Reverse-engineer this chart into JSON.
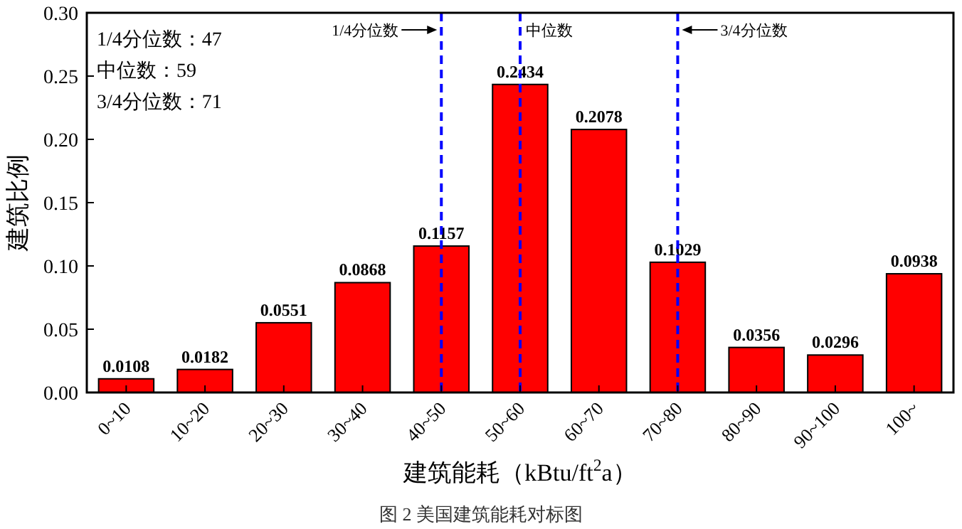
{
  "chart_data": {
    "type": "bar",
    "categories": [
      "0~10",
      "10~20",
      "20~30",
      "30~40",
      "40~50",
      "50~60",
      "60~70",
      "70~80",
      "80~90",
      "90~100",
      "100~"
    ],
    "values": [
      0.0108,
      0.0182,
      0.0551,
      0.0868,
      0.1157,
      0.2434,
      0.2078,
      0.1029,
      0.0356,
      0.0296,
      0.0938
    ],
    "color": "#ff0000",
    "data_labels": true,
    "xlabel": "建筑能耗（kBtu/ft$^{2}$a）",
    "ylabel": "建筑比例",
    "ylim": [
      0,
      0.3
    ],
    "yticks": [
      {
        "value": 0,
        "label": "0.00"
      },
      {
        "value": 0.05,
        "label": "0.05"
      },
      {
        "value": 0.1,
        "label": "0.10"
      },
      {
        "value": 0.15,
        "label": "0.15"
      },
      {
        "value": 0.2,
        "label": "0.20"
      },
      {
        "value": 0.25,
        "label": "0.25"
      },
      {
        "value": 0.3,
        "label": "0.30"
      }
    ],
    "ref_lines": [
      {
        "axis": "x",
        "value": "40~50",
        "label": "1/4分位数",
        "color": "#0000ff",
        "line_style": "dashed"
      },
      {
        "axis": "x",
        "value": "50~60",
        "label": "中位数",
        "color": "#0000ff",
        "line_style": "dashed"
      },
      {
        "axis": "x",
        "value": "70~80",
        "label": "3/4分位数",
        "color": "#0000ff",
        "line_style": "dashed"
      }
    ],
    "annotations": [
      "1/4分位数：47",
      "中位数：59",
      "3/4分位数：71",
      "图 2 美国建筑能耗对标图"
    ],
    "grid": false,
    "legend": false
  }
}
